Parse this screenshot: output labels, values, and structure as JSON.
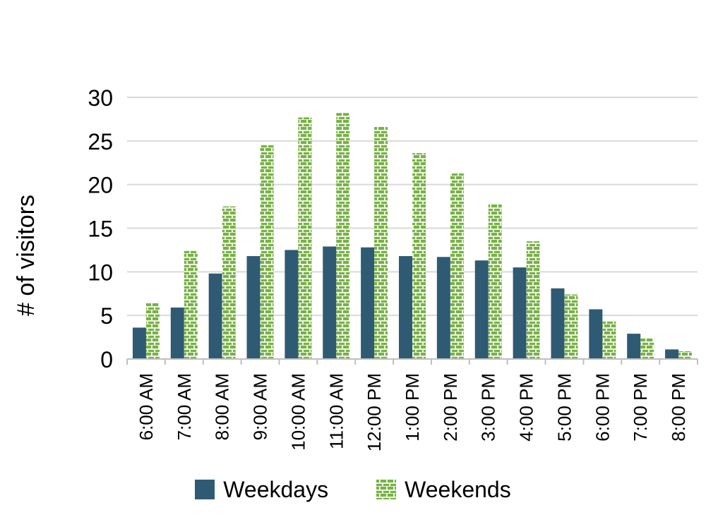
{
  "chart_data": {
    "type": "bar",
    "ylabel": "# of visitors",
    "xlabel": "",
    "ylim": [
      0,
      30
    ],
    "yticks": [
      0,
      5,
      10,
      15,
      20,
      25,
      30
    ],
    "grid": true,
    "legend_position": "bottom",
    "categories": [
      "6:00 AM",
      "7:00 AM",
      "8:00 AM",
      "9:00 AM",
      "10:00 AM",
      "11:00 AM",
      "12:00 PM",
      "1:00 PM",
      "2:00 PM",
      "3:00 PM",
      "4:00 PM",
      "5:00 PM",
      "6:00 PM",
      "7:00 PM",
      "8:00 PM"
    ],
    "series": [
      {
        "name": "Weekdays",
        "color": "#2f5a73",
        "pattern": "solid",
        "values": [
          3.6,
          5.9,
          9.8,
          11.8,
          12.5,
          12.9,
          12.8,
          11.8,
          11.7,
          11.3,
          10.5,
          8.1,
          5.7,
          2.9,
          1.1
        ]
      },
      {
        "name": "Weekends",
        "color": "#77b144",
        "pattern": "brick",
        "values": [
          6.4,
          12.5,
          17.5,
          24.6,
          27.7,
          28.2,
          26.6,
          23.6,
          21.3,
          17.8,
          13.5,
          7.4,
          4.4,
          2.4,
          0.9
        ]
      }
    ]
  }
}
